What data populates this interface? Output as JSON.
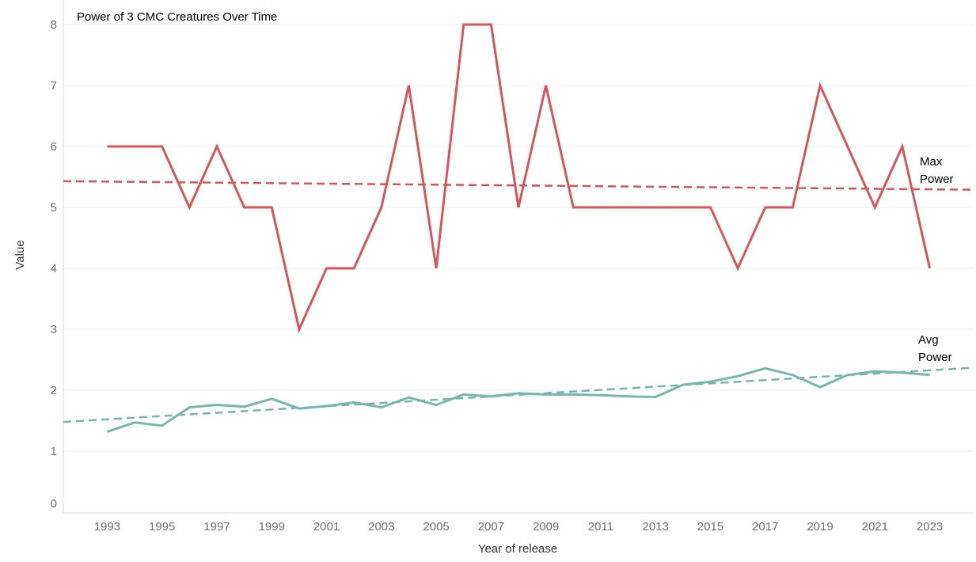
{
  "chart_data": {
    "type": "line",
    "title": "Power of 3 CMC Creatures Over Time",
    "xlabel": "Year of release",
    "ylabel": "Value",
    "x": [
      1993,
      1994,
      1995,
      1996,
      1997,
      1998,
      1999,
      2000,
      2001,
      2002,
      2003,
      2004,
      2005,
      2006,
      2007,
      2008,
      2009,
      2010,
      2011,
      2012,
      2013,
      2014,
      2015,
      2016,
      2017,
      2018,
      2019,
      2020,
      2021,
      2022,
      2023
    ],
    "x_tick_labels": [
      "1993",
      "1995",
      "1997",
      "1999",
      "2001",
      "2003",
      "2005",
      "2007",
      "2009",
      "2011",
      "2013",
      "2015",
      "2017",
      "2019",
      "2021",
      "2023"
    ],
    "y_tick_labels": [
      "0",
      "1",
      "2",
      "3",
      "4",
      "5",
      "6",
      "7",
      "8"
    ],
    "ylim": [
      0,
      8.2
    ],
    "xlim": [
      1991.4,
      2024.6
    ],
    "grid": true,
    "series": [
      {
        "name_lines": [
          "Max",
          "Power"
        ],
        "color": "#d9545a",
        "values": [
          6,
          6,
          6,
          5,
          6,
          5,
          5,
          3,
          4,
          4,
          5,
          7,
          4,
          8,
          8,
          5,
          7,
          5,
          5,
          5,
          5,
          5,
          5,
          4,
          5,
          5,
          7,
          6,
          5,
          6,
          4
        ],
        "trend": {
          "start": [
            1991.4,
            5.43
          ],
          "end": [
            2024.6,
            5.29
          ]
        }
      },
      {
        "name_lines": [
          "Avg",
          "Power"
        ],
        "color": "#76b7ad",
        "values": [
          1.32,
          1.47,
          1.42,
          1.72,
          1.76,
          1.73,
          1.86,
          1.7,
          1.74,
          1.8,
          1.72,
          1.88,
          1.76,
          1.93,
          1.9,
          1.95,
          1.93,
          1.93,
          1.92,
          1.9,
          1.89,
          2.09,
          2.14,
          2.23,
          2.36,
          2.25,
          2.05,
          2.25,
          2.31,
          2.29,
          2.25
        ],
        "trend": {
          "start": [
            1991.4,
            1.48
          ],
          "end": [
            2024.6,
            2.37
          ]
        }
      }
    ]
  }
}
